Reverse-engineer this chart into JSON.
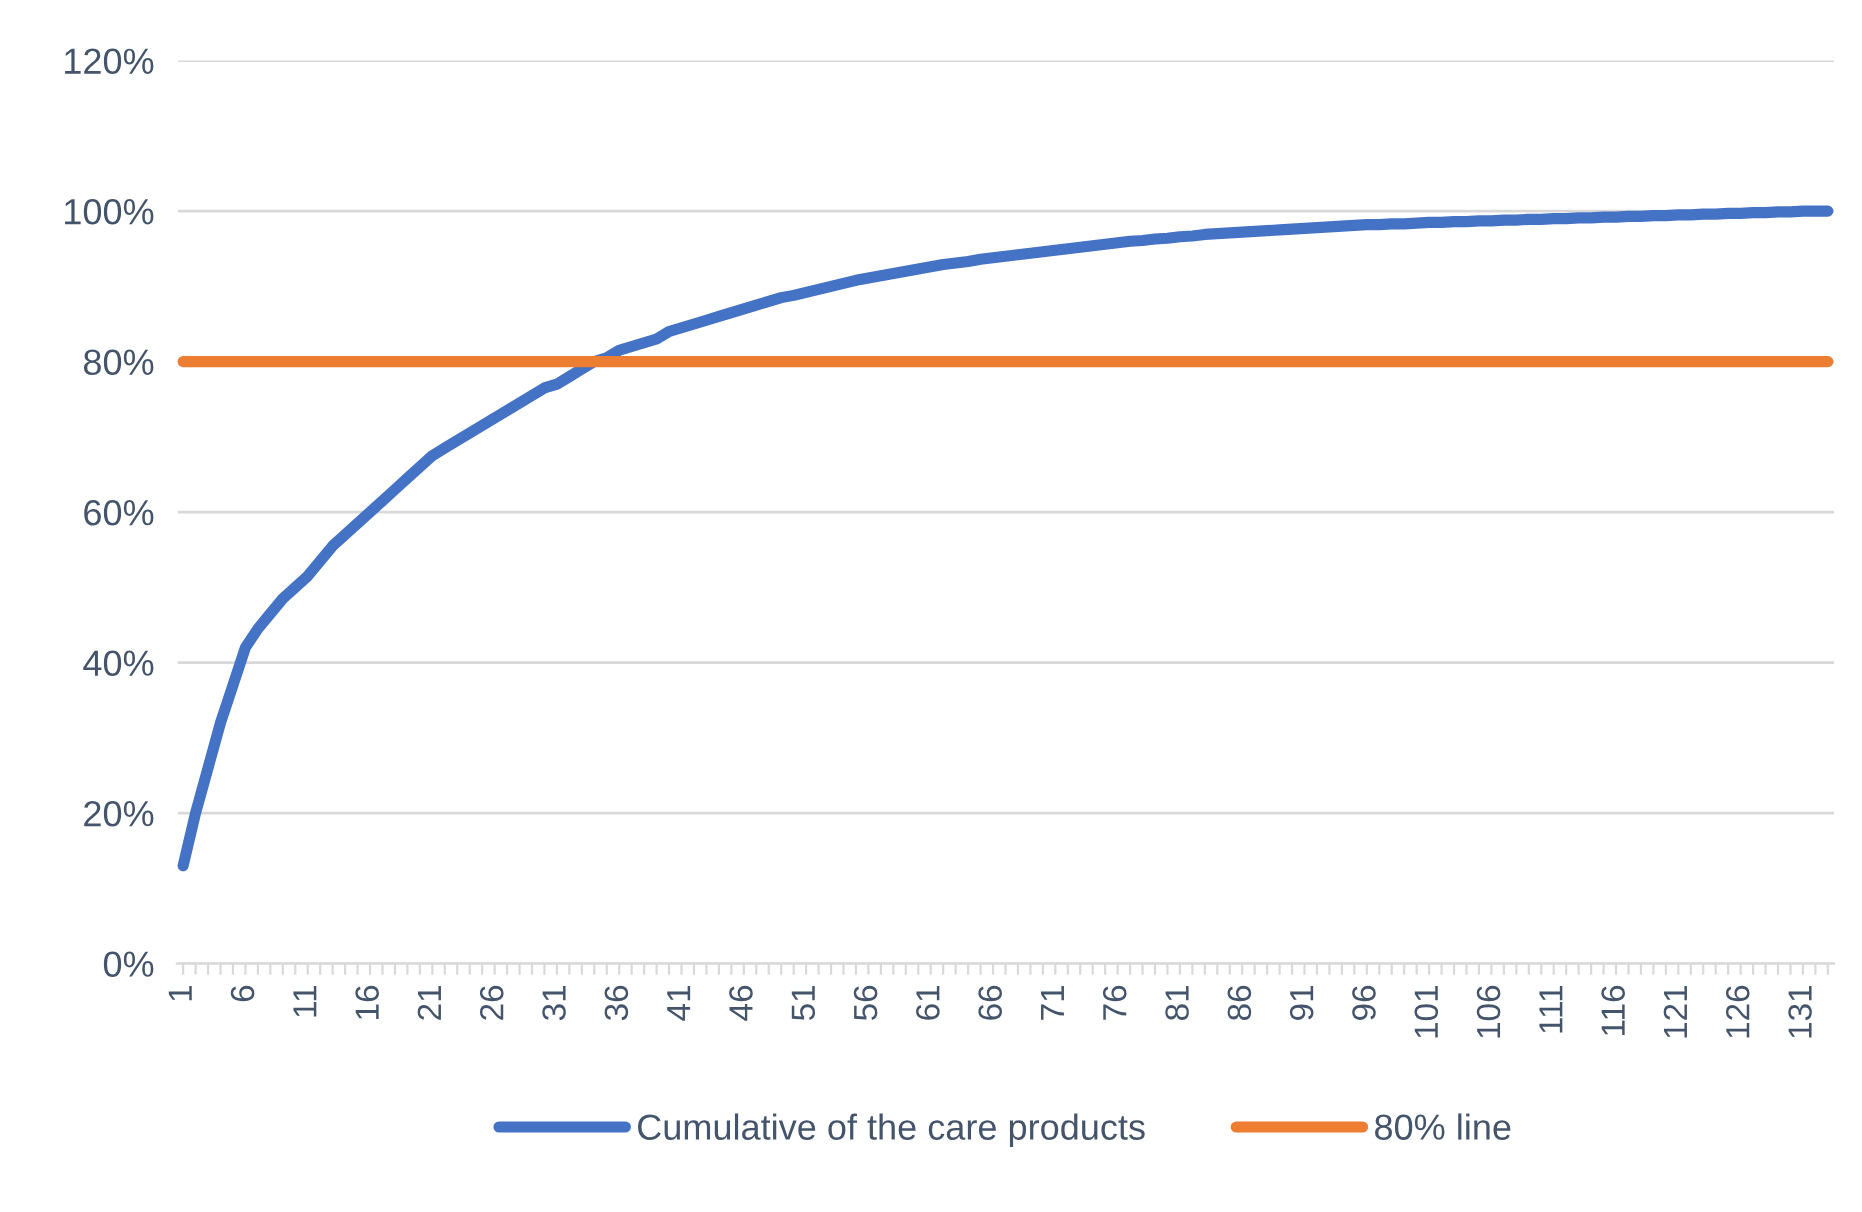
{
  "chart_data": {
    "type": "line",
    "categories": [
      "1",
      null,
      null,
      null,
      null,
      "6",
      null,
      null,
      null,
      null,
      "11",
      null,
      null,
      null,
      null,
      "16",
      null,
      null,
      null,
      null,
      "21",
      null,
      null,
      null,
      null,
      "26",
      null,
      null,
      null,
      null,
      "31",
      null,
      null,
      null,
      null,
      "36",
      null,
      null,
      null,
      null,
      "41",
      null,
      null,
      null,
      null,
      "46",
      null,
      null,
      null,
      null,
      "51",
      null,
      null,
      null,
      null,
      "56",
      null,
      null,
      null,
      null,
      "61",
      null,
      null,
      null,
      null,
      "66",
      null,
      null,
      null,
      null,
      "71",
      null,
      null,
      null,
      null,
      "76",
      null,
      null,
      null,
      null,
      "81",
      null,
      null,
      null,
      null,
      "86",
      null,
      null,
      null,
      null,
      "91",
      null,
      null,
      null,
      null,
      "96",
      null,
      null,
      null,
      null,
      "101",
      null,
      null,
      null,
      null,
      "106",
      null,
      null,
      null,
      null,
      "111",
      null,
      null,
      null,
      null,
      "116",
      null,
      null,
      null,
      null,
      "121",
      null,
      null,
      null,
      null,
      "126",
      null,
      null,
      null,
      null,
      "131",
      null,
      null
    ],
    "series": [
      {
        "name": "Cumulative of the care products",
        "color": "#4472c4",
        "values": [
          13,
          20,
          26,
          32,
          37,
          42,
          44.5,
          46.5,
          48.5,
          50,
          51.5,
          53.5,
          55.5,
          57,
          58.5,
          60,
          61.5,
          63,
          64.5,
          66,
          67.5,
          68.5,
          69.5,
          70.5,
          71.5,
          72.5,
          73.5,
          74.5,
          75.5,
          76.5,
          77,
          78,
          79,
          80,
          80.5,
          81.5,
          82,
          82.5,
          83,
          84,
          84.5,
          85,
          85.5,
          86,
          86.5,
          87,
          87.5,
          88,
          88.5,
          88.8,
          89.2,
          89.6,
          90,
          90.4,
          90.8,
          91.1,
          91.4,
          91.7,
          92,
          92.3,
          92.6,
          92.9,
          93.1,
          93.3,
          93.6,
          93.8,
          94,
          94.2,
          94.4,
          94.6,
          94.8,
          95,
          95.2,
          95.4,
          95.6,
          95.8,
          96,
          96.1,
          96.3,
          96.4,
          96.6,
          96.7,
          96.9,
          97,
          97.1,
          97.2,
          97.3,
          97.4,
          97.5,
          97.6,
          97.7,
          97.8,
          97.9,
          98,
          98.1,
          98.2,
          98.2,
          98.3,
          98.3,
          98.4,
          98.5,
          98.5,
          98.6,
          98.6,
          98.7,
          98.7,
          98.8,
          98.8,
          98.9,
          98.9,
          99,
          99,
          99.1,
          99.1,
          99.2,
          99.2,
          99.3,
          99.3,
          99.4,
          99.4,
          99.5,
          99.5,
          99.6,
          99.6,
          99.7,
          99.7,
          99.8,
          99.8,
          99.9,
          99.9,
          100,
          100,
          100
        ]
      },
      {
        "name": "80% line",
        "color": "#ed7d31",
        "values": [
          80,
          80,
          80,
          80,
          80,
          80,
          80,
          80,
          80,
          80,
          80,
          80,
          80,
          80,
          80,
          80,
          80,
          80,
          80,
          80,
          80,
          80,
          80,
          80,
          80,
          80,
          80,
          80,
          80,
          80,
          80,
          80,
          80,
          80,
          80,
          80,
          80,
          80,
          80,
          80,
          80,
          80,
          80,
          80,
          80,
          80,
          80,
          80,
          80,
          80,
          80,
          80,
          80,
          80,
          80,
          80,
          80,
          80,
          80,
          80,
          80,
          80,
          80,
          80,
          80,
          80,
          80,
          80,
          80,
          80,
          80,
          80,
          80,
          80,
          80,
          80,
          80,
          80,
          80,
          80,
          80,
          80,
          80,
          80,
          80,
          80,
          80,
          80,
          80,
          80,
          80,
          80,
          80,
          80,
          80,
          80,
          80,
          80,
          80,
          80,
          80,
          80,
          80,
          80,
          80,
          80,
          80,
          80,
          80,
          80,
          80,
          80,
          80,
          80,
          80,
          80,
          80,
          80,
          80,
          80,
          80,
          80,
          80,
          80,
          80,
          80,
          80,
          80,
          80,
          80,
          80,
          80,
          80
        ]
      }
    ],
    "ylim": [
      0,
      120
    ],
    "yticks": [
      {
        "value": 0,
        "label": "0%"
      },
      {
        "value": 20,
        "label": "20%"
      },
      {
        "value": 40,
        "label": "40%"
      },
      {
        "value": 60,
        "label": "60%"
      },
      {
        "value": 80,
        "label": "80%"
      },
      {
        "value": 100,
        "label": "100%"
      },
      {
        "value": 120,
        "label": "120%"
      }
    ],
    "grid": "y",
    "legend": "bottom",
    "marker": "none",
    "line_style": "solid"
  }
}
